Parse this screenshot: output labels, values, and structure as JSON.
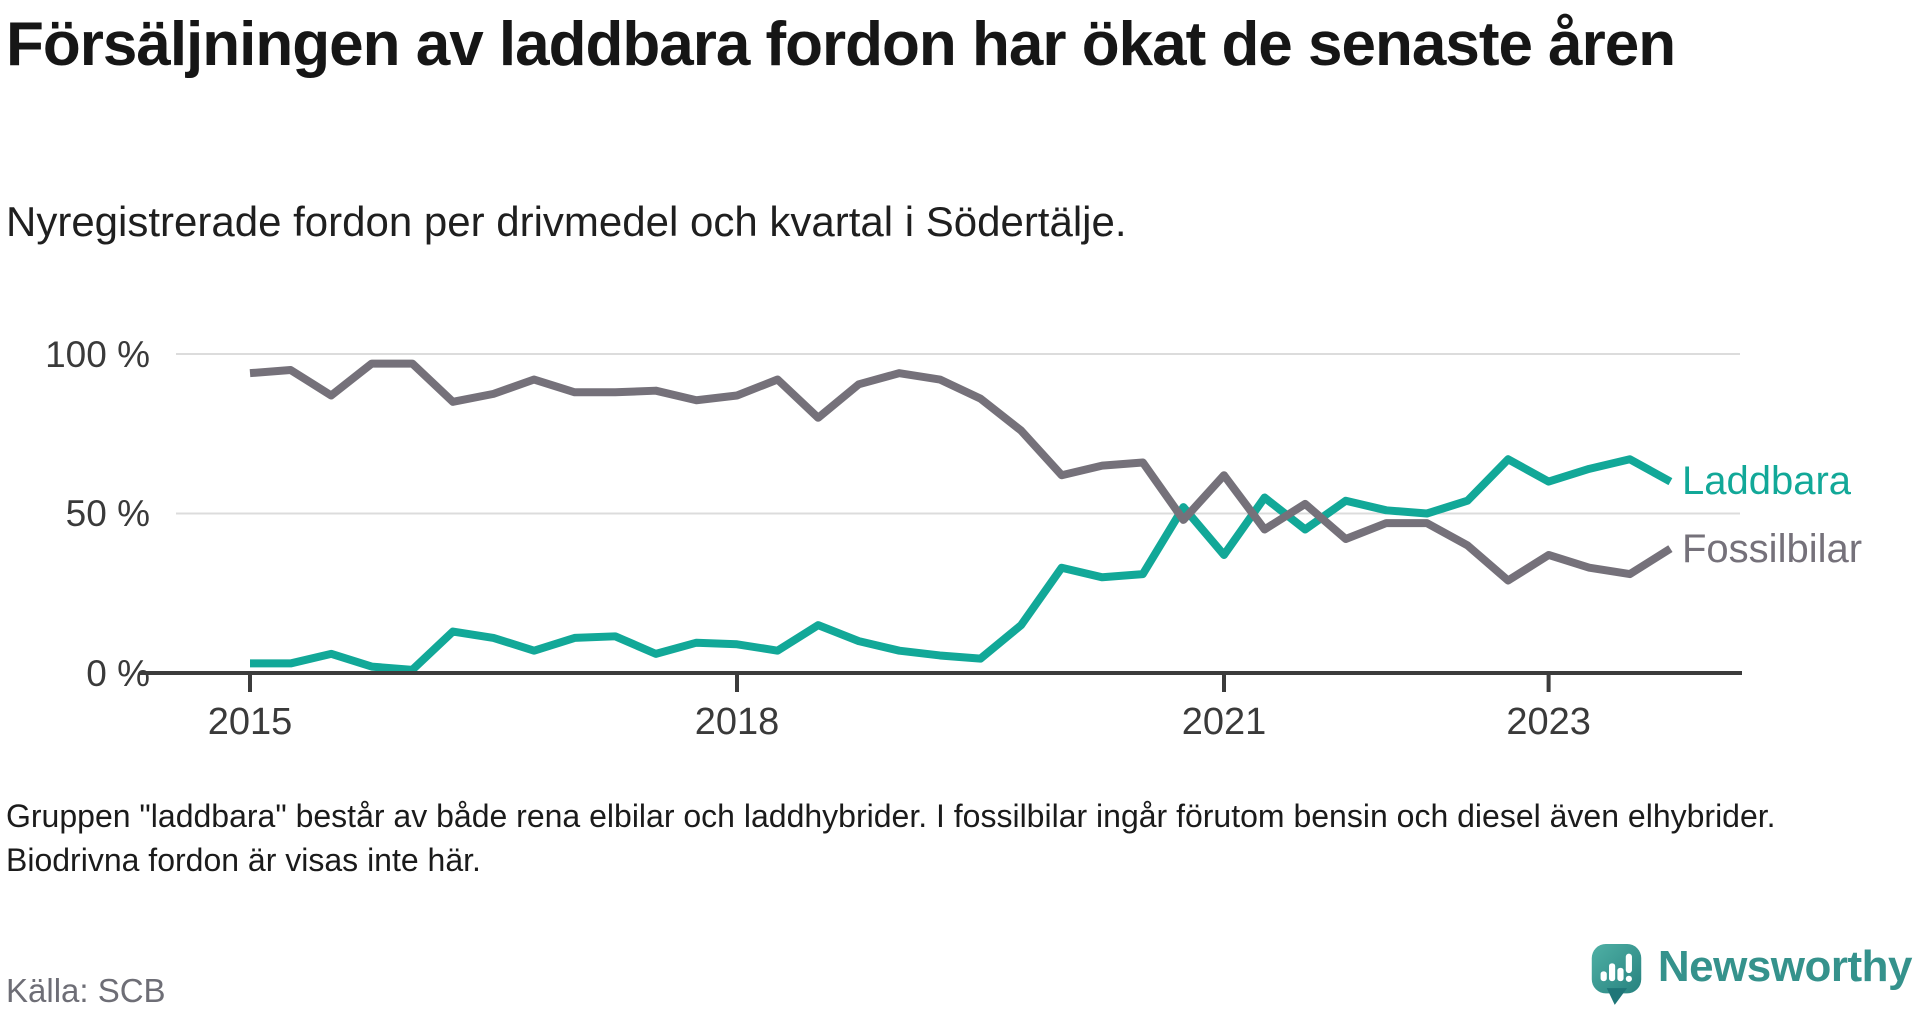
{
  "chart_data": {
    "type": "line",
    "title": "Försäljningen av laddbara fordon har ökat de senaste åren",
    "subtitle": "Nyregistrerade fordon per drivmedel och kvartal i Södertälje.",
    "x": [
      "2015-Q1",
      "2015-Q2",
      "2015-Q3",
      "2015-Q4",
      "2016-Q1",
      "2016-Q2",
      "2016-Q3",
      "2016-Q4",
      "2017-Q1",
      "2017-Q2",
      "2017-Q3",
      "2017-Q4",
      "2018-Q1",
      "2018-Q2",
      "2018-Q3",
      "2018-Q4",
      "2019-Q1",
      "2019-Q2",
      "2019-Q3",
      "2019-Q4",
      "2020-Q1",
      "2020-Q2",
      "2020-Q3",
      "2020-Q4",
      "2021-Q1",
      "2021-Q2",
      "2021-Q3",
      "2021-Q4",
      "2022-Q1",
      "2022-Q2",
      "2022-Q3",
      "2022-Q4",
      "2023-Q1",
      "2023-Q2",
      "2023-Q3",
      "2023-Q4"
    ],
    "series": [
      {
        "name": "Laddbara",
        "color": "#12A898",
        "values": [
          3,
          3,
          6,
          2,
          1,
          13,
          11,
          7,
          11,
          11.5,
          6,
          9.5,
          9,
          7,
          15,
          10,
          7,
          5.5,
          4.5,
          15,
          33,
          30,
          31,
          52,
          37,
          55,
          45,
          54,
          51,
          50,
          54,
          67,
          60,
          64,
          67,
          60
        ]
      },
      {
        "name": "Fossilbilar",
        "color": "#75717A",
        "values": [
          94,
          95,
          87,
          97,
          97,
          85,
          87.5,
          92,
          88,
          88,
          88.5,
          85.5,
          87,
          92,
          80,
          90.5,
          94,
          92,
          86,
          76,
          62,
          65,
          66,
          48,
          62,
          45,
          53,
          42,
          47,
          47,
          40,
          29,
          37,
          33,
          31,
          39
        ]
      }
    ],
    "unit": "%",
    "ylim": [
      0,
      100
    ],
    "yticks": [
      {
        "value": 100,
        "label": "100 %"
      },
      {
        "value": 50,
        "label": "50 %"
      },
      {
        "value": 0,
        "label": "0 %"
      }
    ],
    "xticks": [
      {
        "index": 0,
        "label": "2015"
      },
      {
        "index": 12,
        "label": "2018"
      },
      {
        "index": 24,
        "label": "2021"
      },
      {
        "index": 32,
        "label": "2023"
      }
    ],
    "grid": "horizontal",
    "legend_position": "right-end-of-line"
  },
  "footnote": {
    "text": "Gruppen \"laddbara\" består av både rena elbilar och laddhybrider. I fossilbilar ingår förutom bensin och diesel även elhybrider. Biodrivna fordon är visas inte här."
  },
  "source": {
    "label": "Källa: SCB"
  },
  "logo": {
    "brand": "Newsworthy",
    "accent": "#35928C"
  }
}
